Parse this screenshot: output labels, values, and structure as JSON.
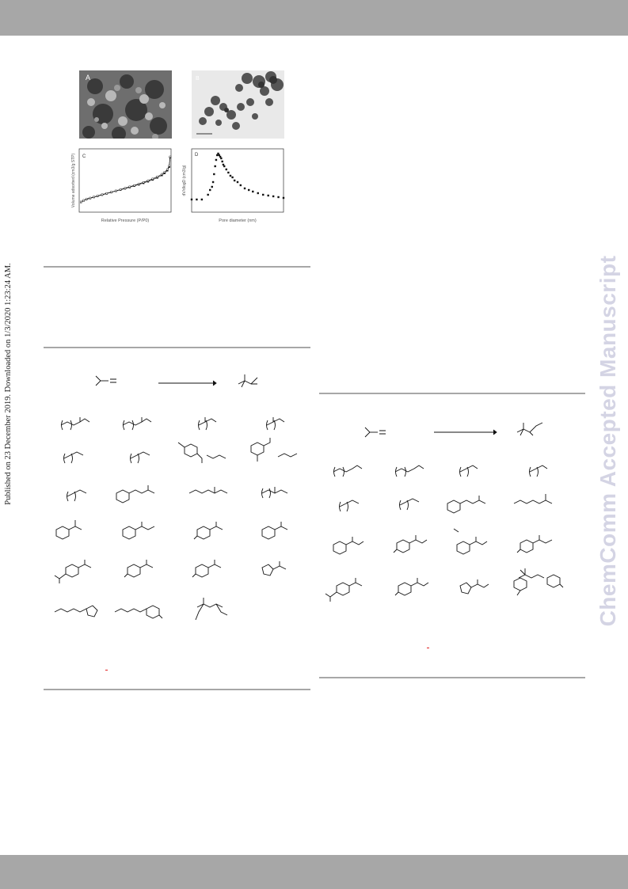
{
  "side_note": "Published on 23 December 2019. Downloaded on 1/3/2020 1:23:24 AM.",
  "watermark": "ChemComm Accepted Manuscript",
  "figure": {
    "panel_a_label": "A",
    "panel_b_label": "B",
    "panel_c_label": "C",
    "panel_d_label": "D"
  },
  "chart_data": [
    {
      "type": "line",
      "title": "",
      "xlabel": "Relative Pressure (P/P0)",
      "ylabel": "Volume adsorbed (cm3/g STP)",
      "xlim": [
        0,
        1.0
      ],
      "ylim": [
        0,
        600
      ],
      "x": [
        0.02,
        0.05,
        0.08,
        0.12,
        0.16,
        0.2,
        0.25,
        0.3,
        0.35,
        0.4,
        0.45,
        0.5,
        0.55,
        0.6,
        0.65,
        0.7,
        0.75,
        0.8,
        0.85,
        0.9,
        0.93,
        0.96,
        0.98,
        0.99
      ],
      "series": [
        {
          "values": [
            95,
            110,
            122,
            132,
            142,
            152,
            164,
            176,
            188,
            200,
            212,
            224,
            236,
            249,
            262,
            276,
            291,
            308,
            327,
            350,
            370,
            395,
            430,
            520
          ]
        },
        {
          "values": [
            98,
            113,
            125,
            135,
            145,
            155,
            167,
            179,
            191,
            203,
            215,
            228,
            241,
            254,
            268,
            283,
            299,
            316,
            336,
            360,
            380,
            405,
            440,
            525
          ]
        }
      ]
    },
    {
      "type": "scatter",
      "title": "",
      "xlabel": "Pore diameter (nm)",
      "ylabel": "dV/dlogD (cm3/g)",
      "xlim": [
        1,
        10
      ],
      "ylim": [
        0,
        0.04
      ],
      "x": [
        1.0,
        1.5,
        2.0,
        2.6,
        2.8,
        3.0,
        3.1,
        3.2,
        3.3,
        3.4,
        3.5,
        3.6,
        3.7,
        3.8,
        3.9,
        4.0,
        4.1,
        4.2,
        4.4,
        4.6,
        4.8,
        5.0,
        5.2,
        5.5,
        5.8,
        6.2,
        6.6,
        7.0,
        7.5,
        8.0,
        8.5,
        9.0,
        9.5,
        10.0
      ],
      "series": [
        {
          "values": [
            0.008,
            0.008,
            0.008,
            0.011,
            0.014,
            0.016,
            0.019,
            0.024,
            0.029,
            0.033,
            0.036,
            0.037,
            0.036,
            0.035,
            0.034,
            0.032,
            0.03,
            0.029,
            0.027,
            0.025,
            0.023,
            0.022,
            0.02,
            0.019,
            0.017,
            0.015,
            0.014,
            0.013,
            0.012,
            0.011,
            0.0105,
            0.01,
            0.0095,
            0.009
          ]
        }
      ]
    }
  ]
}
